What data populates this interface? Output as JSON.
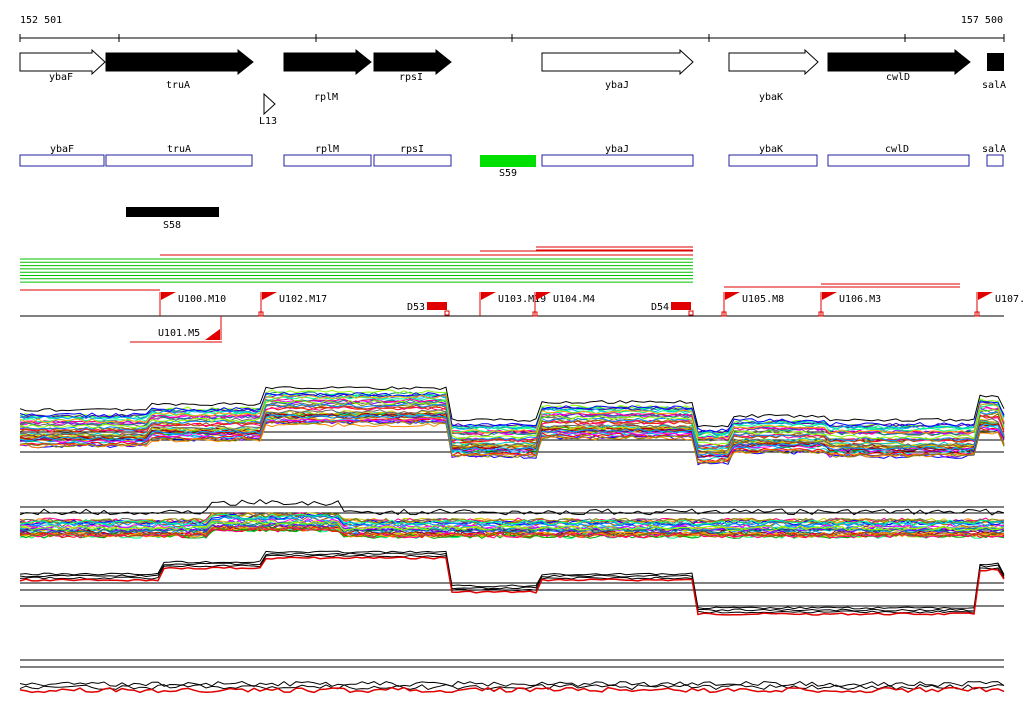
{
  "ruler": {
    "start_label": "152 501",
    "end_label": "157 500"
  },
  "genes": [
    {
      "name": "ybaF",
      "filled": false
    },
    {
      "name": "truA",
      "filled": true
    },
    {
      "name": "rplM",
      "filled": true
    },
    {
      "name": "rpsI",
      "filled": true
    },
    {
      "name": "ybaJ",
      "filled": false
    },
    {
      "name": "ybaK",
      "filled": false
    },
    {
      "name": "cwlD",
      "filled": true
    },
    {
      "name": "salA",
      "filled": true
    }
  ],
  "small_feature": {
    "name": "L13"
  },
  "annotation_boxes": [
    {
      "name": "ybaF"
    },
    {
      "name": "truA"
    },
    {
      "name": "rplM"
    },
    {
      "name": "rpsI"
    },
    {
      "name": "ybaJ"
    },
    {
      "name": "ybaK"
    },
    {
      "name": "cwlD"
    },
    {
      "name": "salA"
    }
  ],
  "segments": [
    {
      "name": "S59",
      "color": "#00e000"
    },
    {
      "name": "S58",
      "color": "#000000"
    }
  ],
  "markers": [
    {
      "name": "U100.M10",
      "kind": "U"
    },
    {
      "name": "U102.M17",
      "kind": "U"
    },
    {
      "name": "D53",
      "kind": "D"
    },
    {
      "name": "U103.M19",
      "kind": "U"
    },
    {
      "name": "U104.M4",
      "kind": "U"
    },
    {
      "name": "D54",
      "kind": "D"
    },
    {
      "name": "U105.M8",
      "kind": "U"
    },
    {
      "name": "U106.M3",
      "kind": "U"
    },
    {
      "name": "U107.",
      "kind": "U"
    },
    {
      "name": "U101.M5",
      "kind": "U"
    }
  ],
  "colors": {
    "marker": "#ff0000",
    "annotation_box": "#2020a0",
    "read_green": "#00c000",
    "read_red": "#e00000"
  }
}
